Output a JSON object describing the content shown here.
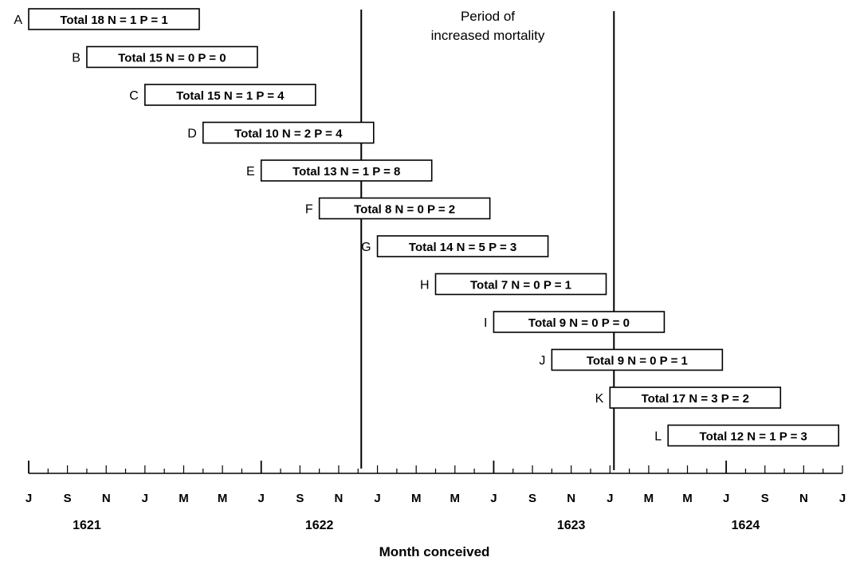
{
  "annotation": {
    "line1": "Period of",
    "line2": "increased mortality"
  },
  "axis_title": "Month conceived",
  "month_ticks": [
    "J",
    "S",
    "N",
    "J",
    "M",
    "M",
    "J",
    "S",
    "N",
    "J",
    "M",
    "M",
    "J",
    "S",
    "N",
    "J",
    "M",
    "M",
    "J",
    "S",
    "N",
    "J"
  ],
  "years": [
    "1621",
    "1622",
    "1623",
    "1624"
  ],
  "cohorts": [
    {
      "label": "A",
      "text": "Total 18  N = 1  P = 1",
      "start_month": 0
    },
    {
      "label": "B",
      "text": "Total 15  N = 0  P = 0",
      "start_month": 3
    },
    {
      "label": "C",
      "text": "Total 15  N = 1  P = 4",
      "start_month": 6
    },
    {
      "label": "D",
      "text": "Total 10  N = 2  P = 4",
      "start_month": 9
    },
    {
      "label": "E",
      "text": "Total 13  N = 1  P = 8",
      "start_month": 12
    },
    {
      "label": "F",
      "text": "Total 8  N = 0  P = 2",
      "start_month": 15
    },
    {
      "label": "G",
      "text": "Total 14  N = 5  P = 3",
      "start_month": 18
    },
    {
      "label": "H",
      "text": "Total 7  N = 0  P = 1",
      "start_month": 21
    },
    {
      "label": "I",
      "text": "Total 9  N = 0  P = 0",
      "start_month": 24
    },
    {
      "label": "J",
      "text": "Total 9  N = 0  P = 1",
      "start_month": 27
    },
    {
      "label": "K",
      "text": "Total 17  N = 3  P = 2",
      "start_month": 30
    },
    {
      "label": "L",
      "text": "Total 12  N = 1  P = 3",
      "start_month": 33
    }
  ],
  "mortality_period": {
    "start_month": 17,
    "end_month": 30
  }
}
